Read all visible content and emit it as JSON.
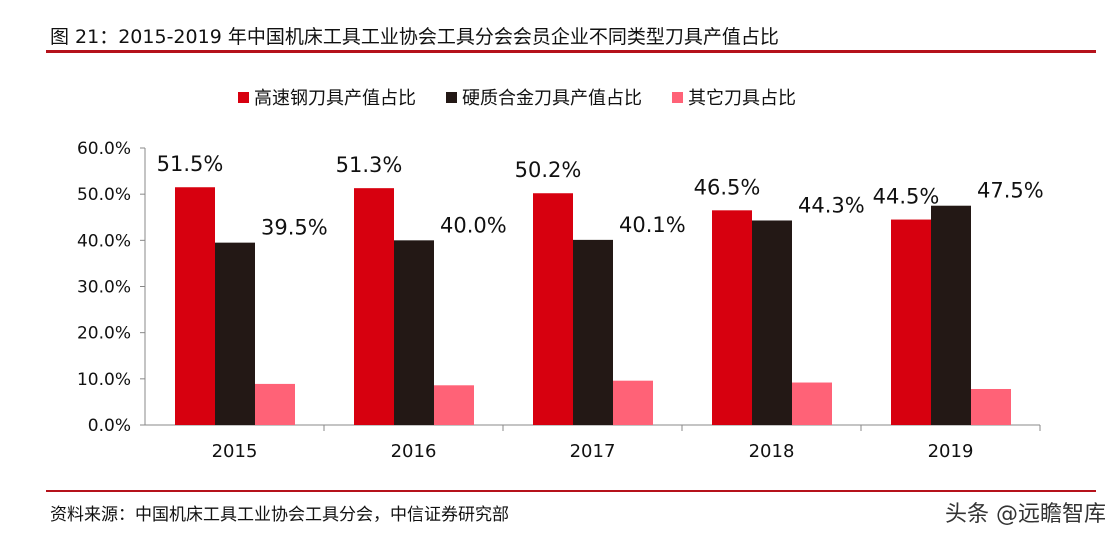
{
  "title": "图 21：2015-2019 年中国机床工具工业协会工具分会会员企业不同类型刀具产值占比",
  "source": "资料来源：中国机床工具工业协会工具分会，中信证券研究部",
  "watermark": "头条 @远瞻智库",
  "chart_data": {
    "type": "bar",
    "categories": [
      "2015",
      "2016",
      "2017",
      "2018",
      "2019"
    ],
    "series": [
      {
        "name": "高速钢刀具产值占比",
        "color": "#d7000f",
        "values": [
          51.5,
          51.3,
          50.2,
          46.5,
          44.5
        ],
        "labels": [
          "51.5%",
          "51.3%",
          "50.2%",
          "46.5%",
          "44.5%"
        ]
      },
      {
        "name": "硬质合金刀具产值占比",
        "color": "#231815",
        "values": [
          39.5,
          40.0,
          40.1,
          44.3,
          47.5
        ],
        "labels": [
          "39.5%",
          "40.0%",
          "40.1%",
          "44.3%",
          "47.5%"
        ]
      },
      {
        "name": "其它刀具占比",
        "color": "#ff6277",
        "values": [
          8.9,
          8.6,
          9.6,
          9.2,
          7.8
        ]
      }
    ],
    "ylim": [
      0,
      60
    ],
    "yticks": [
      "0.0%",
      "10.0%",
      "20.0%",
      "30.0%",
      "40.0%",
      "50.0%",
      "60.0%"
    ],
    "legend": "top",
    "grid": false
  }
}
